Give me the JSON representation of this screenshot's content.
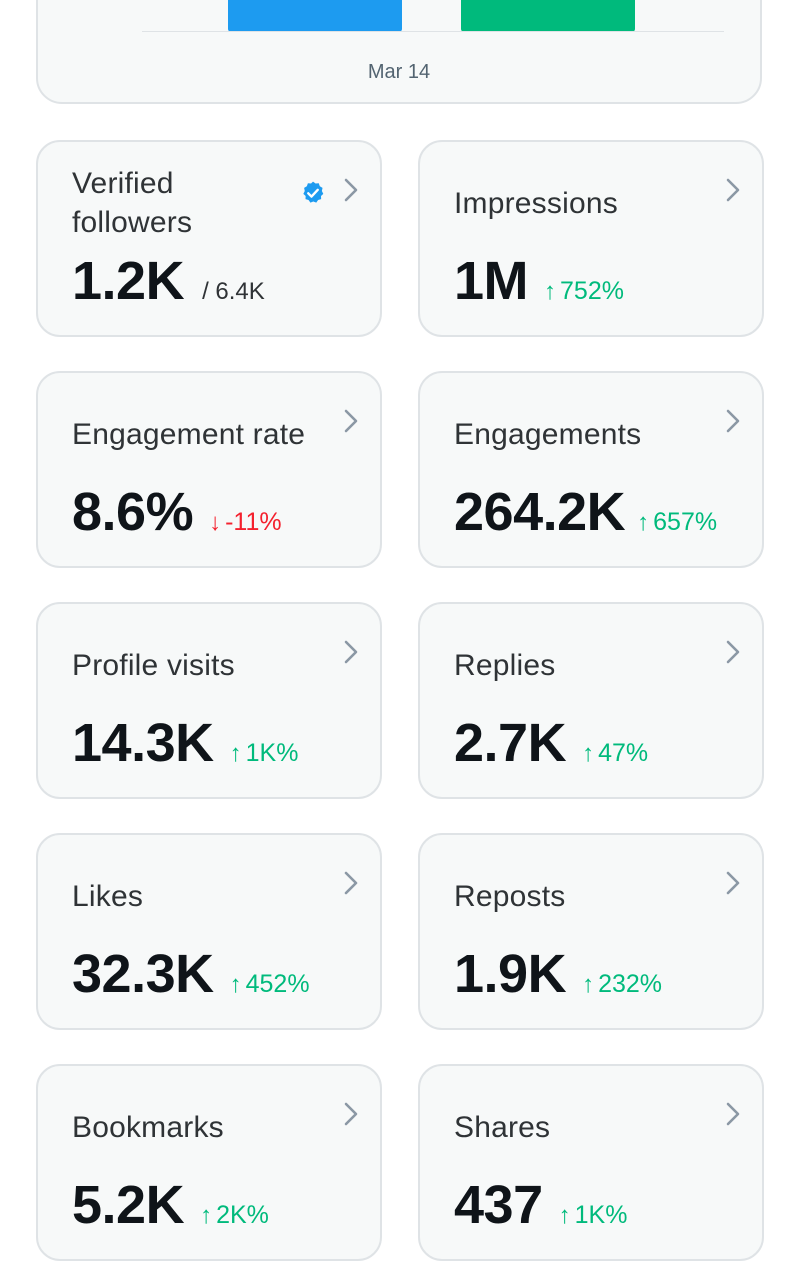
{
  "chart": {
    "x_label": "Mar 14",
    "colors": {
      "bar_a": "#1d9bf0",
      "bar_b": "#00ba7c"
    }
  },
  "colors": {
    "up": "#00ba7c",
    "down": "#f4212e",
    "verified_badge": "#1d9bf0"
  },
  "metrics": [
    {
      "label": "Verified followers",
      "value": "1.2K",
      "sub": "/ 6.4K",
      "verified_badge": true,
      "icon": "chevron-right-icon"
    },
    {
      "label": "Impressions",
      "value": "1M",
      "change": "752%",
      "direction": "up",
      "icon": "chevron-right-icon"
    },
    {
      "label": "Engagement rate",
      "value": "8.6%",
      "change": "-11%",
      "direction": "down",
      "icon": "chevron-right-icon"
    },
    {
      "label": "Engagements",
      "value": "264.2K",
      "change": "657%",
      "direction": "up",
      "icon": "chevron-right-icon"
    },
    {
      "label": "Profile visits",
      "value": "14.3K",
      "change": "1K%",
      "direction": "up",
      "icon": "chevron-right-icon"
    },
    {
      "label": "Replies",
      "value": "2.7K",
      "change": "47%",
      "direction": "up",
      "icon": "chevron-right-icon"
    },
    {
      "label": "Likes",
      "value": "32.3K",
      "change": "452%",
      "direction": "up",
      "icon": "chevron-right-icon"
    },
    {
      "label": "Reposts",
      "value": "1.9K",
      "change": "232%",
      "direction": "up",
      "icon": "chevron-right-icon"
    },
    {
      "label": "Bookmarks",
      "value": "5.2K",
      "change": "2K%",
      "direction": "up",
      "icon": "chevron-right-icon"
    },
    {
      "label": "Shares",
      "value": "437",
      "change": "1K%",
      "direction": "up",
      "icon": "chevron-right-icon"
    }
  ]
}
